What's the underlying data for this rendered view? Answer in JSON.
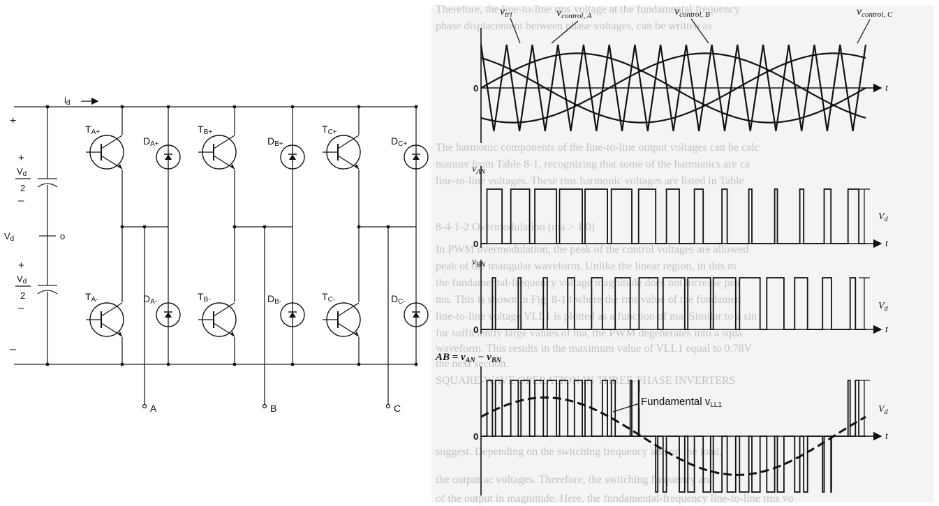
{
  "circuit": {
    "current_label": "i",
    "current_sub": "d",
    "dc_label": "V",
    "dc_sub": "d",
    "half_num": "V",
    "half_num_sub": "d",
    "half_den": "2",
    "plus": "+",
    "minus": "–",
    "midpoint": "o",
    "switches": [
      {
        "base": "T",
        "sub": "A+"
      },
      {
        "base": "T",
        "sub": "B+"
      },
      {
        "base": "T",
        "sub": "C+"
      },
      {
        "base": "T",
        "sub": "A-"
      },
      {
        "base": "T",
        "sub": "B-"
      },
      {
        "base": "T",
        "sub": "C-"
      }
    ],
    "diodes": [
      {
        "base": "D",
        "sub": "A+"
      },
      {
        "base": "D",
        "sub": "B+"
      },
      {
        "base": "D",
        "sub": "C+"
      },
      {
        "base": "D",
        "sub": "A-"
      },
      {
        "base": "D",
        "sub": "B-"
      },
      {
        "base": "D",
        "sub": "C-"
      }
    ],
    "outputs": [
      "A",
      "B",
      "C"
    ]
  },
  "waveforms": {
    "tri_label": {
      "base": "v",
      "sub": "tri"
    },
    "control_labels": [
      {
        "base": "v",
        "sub": "control, A"
      },
      {
        "base": "v",
        "sub": "control, B"
      },
      {
        "base": "v",
        "sub": "control, C"
      }
    ],
    "zero": "0",
    "t": "t",
    "van": {
      "base": "v",
      "sub": "AN"
    },
    "vbn": {
      "base": "v",
      "sub": "BN"
    },
    "vab": "AB = v",
    "vab_rest": "AN",
    "vab_minus": " − v",
    "vab_rest2": "BN",
    "vd": {
      "base": "V",
      "sub": "d"
    },
    "fundamental": "Fundamental v",
    "fundamental_sub": "LL1",
    "mf": 15,
    "ma": 0.8
  },
  "background_text": [
    "Therefore, the line-to-line rms voltage at the fundamental frequency",
    "phase displacement between phase voltages, can be written as",
    "The harmonic components of the line-to-line output voltages can be calc",
    "manner from Table 8-1, recognizing that some of the harmonics are ca",
    "line-to-line voltages. These rms harmonic voltages are listed in Table",
    "8-4-1-2  Overmodulation (ma > 1.0)",
    "In PWM overmodulation, the peak of the control voltages are allowed",
    "peak of the triangular waveform. Unlike the linear region, in this m",
    "the fundamental-frequency voltage magnitude does not increase pro",
    "ma. This is shown in Fig. 8-13 where the rms value of the fundamen",
    "line-to-line voltage VLL1 is plotted as a function of ma. Similar to a sin",
    "for sufficiently large values of ma, the PWM degenerates into a squa",
    "waveform. This results in the maximum value of VLL1 equal to 0.78V",
    "the next section.",
    "SQUARE-WAVE OPERATION IN THREE-PHASE INVERTERS",
    "suggest. Depending on the switching frequency and on the load,",
    "the output ac voltages. Therefore, the switching frequency and",
    "of the output in magnitude. Here, the fundamental-frequency line-to-line rms vo"
  ]
}
